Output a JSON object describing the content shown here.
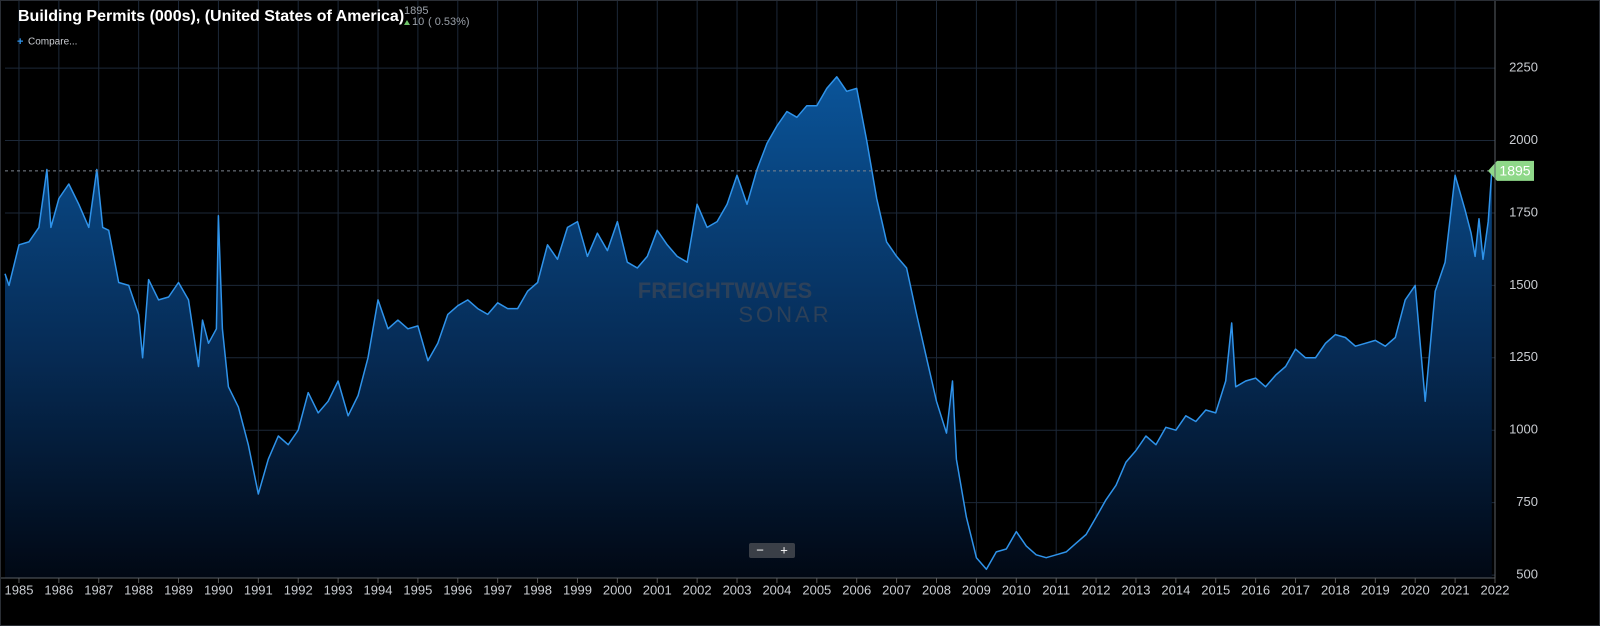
{
  "chart_data": {
    "type": "area",
    "title": "Building Permits (000s), (United States of America)",
    "header_value": 1895,
    "change": 10,
    "change_pct": "( 0.53%)",
    "color": "#2f93ea",
    "x": [
      1984.65,
      1984.75,
      1985.0,
      1985.25,
      1985.5,
      1985.7,
      1985.8,
      1986.0,
      1986.25,
      1986.5,
      1986.75,
      1986.95,
      1987.1,
      1987.25,
      1987.5,
      1987.75,
      1988.0,
      1988.1,
      1988.25,
      1988.5,
      1988.75,
      1989.0,
      1989.25,
      1989.5,
      1989.6,
      1989.75,
      1989.95,
      1990.0,
      1990.1,
      1990.25,
      1990.5,
      1990.75,
      1991.0,
      1991.25,
      1991.5,
      1991.75,
      1992.0,
      1992.25,
      1992.5,
      1992.75,
      1993.0,
      1993.25,
      1993.5,
      1993.75,
      1994.0,
      1994.25,
      1994.5,
      1994.75,
      1995.0,
      1995.25,
      1995.5,
      1995.75,
      1996.0,
      1996.25,
      1996.5,
      1996.75,
      1997.0,
      1997.25,
      1997.5,
      1997.75,
      1998.0,
      1998.25,
      1998.5,
      1998.75,
      1999.0,
      1999.25,
      1999.5,
      1999.75,
      2000.0,
      2000.25,
      2000.5,
      2000.75,
      2001.0,
      2001.25,
      2001.5,
      2001.75,
      2002.0,
      2002.25,
      2002.5,
      2002.75,
      2003.0,
      2003.25,
      2003.5,
      2003.75,
      2004.0,
      2004.25,
      2004.5,
      2004.75,
      2005.0,
      2005.25,
      2005.5,
      2005.75,
      2006.0,
      2006.25,
      2006.5,
      2006.75,
      2007.0,
      2007.25,
      2007.5,
      2007.75,
      2008.0,
      2008.25,
      2008.4,
      2008.5,
      2008.75,
      2009.0,
      2009.25,
      2009.5,
      2009.75,
      2010.0,
      2010.25,
      2010.5,
      2010.75,
      2011.0,
      2011.25,
      2011.5,
      2011.75,
      2012.0,
      2012.25,
      2012.5,
      2012.75,
      2013.0,
      2013.25,
      2013.5,
      2013.75,
      2014.0,
      2014.25,
      2014.5,
      2014.75,
      2015.0,
      2015.25,
      2015.4,
      2015.5,
      2015.75,
      2016.0,
      2016.25,
      2016.5,
      2016.75,
      2017.0,
      2017.25,
      2017.5,
      2017.75,
      2018.0,
      2018.25,
      2018.5,
      2018.75,
      2019.0,
      2019.25,
      2019.5,
      2019.75,
      2020.0,
      2020.25,
      2020.5,
      2020.75,
      2021.0,
      2021.25,
      2021.4,
      2021.5,
      2021.6,
      2021.7,
      2021.83,
      2021.92
    ],
    "values": [
      1540,
      1500,
      1640,
      1650,
      1700,
      1900,
      1700,
      1800,
      1850,
      1780,
      1700,
      1900,
      1700,
      1690,
      1510,
      1500,
      1400,
      1250,
      1520,
      1450,
      1460,
      1510,
      1450,
      1220,
      1380,
      1300,
      1350,
      1740,
      1350,
      1150,
      1080,
      950,
      780,
      900,
      980,
      950,
      1000,
      1130,
      1060,
      1100,
      1170,
      1050,
      1120,
      1250,
      1450,
      1350,
      1380,
      1350,
      1360,
      1240,
      1300,
      1400,
      1430,
      1450,
      1420,
      1400,
      1440,
      1420,
      1420,
      1480,
      1510,
      1640,
      1590,
      1700,
      1720,
      1600,
      1680,
      1620,
      1720,
      1580,
      1560,
      1600,
      1690,
      1640,
      1600,
      1580,
      1780,
      1700,
      1720,
      1780,
      1880,
      1780,
      1900,
      1990,
      2050,
      2100,
      2080,
      2120,
      2120,
      2180,
      2220,
      2170,
      2180,
      2000,
      1800,
      1650,
      1600,
      1560,
      1400,
      1250,
      1100,
      990,
      1170,
      900,
      700,
      560,
      520,
      580,
      590,
      650,
      600,
      570,
      560,
      570,
      580,
      610,
      640,
      700,
      760,
      810,
      890,
      930,
      980,
      950,
      1010,
      1000,
      1050,
      1030,
      1070,
      1060,
      1170,
      1370,
      1150,
      1170,
      1180,
      1150,
      1190,
      1220,
      1280,
      1250,
      1250,
      1300,
      1330,
      1320,
      1290,
      1300,
      1310,
      1290,
      1320,
      1450,
      1500,
      1100,
      1480,
      1580,
      1880,
      1760,
      1680,
      1600,
      1730,
      1590,
      1720,
      1895
    ],
    "xlim": [
      1984.65,
      2022.0
    ],
    "xticks": [
      1985,
      1986,
      1987,
      1988,
      1989,
      1990,
      1991,
      1992,
      1993,
      1994,
      1995,
      1996,
      1997,
      1998,
      1999,
      2000,
      2001,
      2002,
      2003,
      2004,
      2005,
      2006,
      2007,
      2008,
      2009,
      2010,
      2011,
      2012,
      2013,
      2014,
      2015,
      2016,
      2017,
      2018,
      2019,
      2020,
      2021,
      2022
    ],
    "ylim": [
      490,
      2485
    ],
    "yticks": [
      500,
      750,
      1000,
      1250,
      1500,
      1750,
      2000,
      2250
    ],
    "grid": true
  },
  "ui": {
    "compare_icon": "+",
    "compare": "Compare...",
    "watermark_top": "FREIGHTWAVES",
    "watermark_bottom": "SONAR",
    "zoom_out": "−",
    "zoom_in": "+"
  }
}
